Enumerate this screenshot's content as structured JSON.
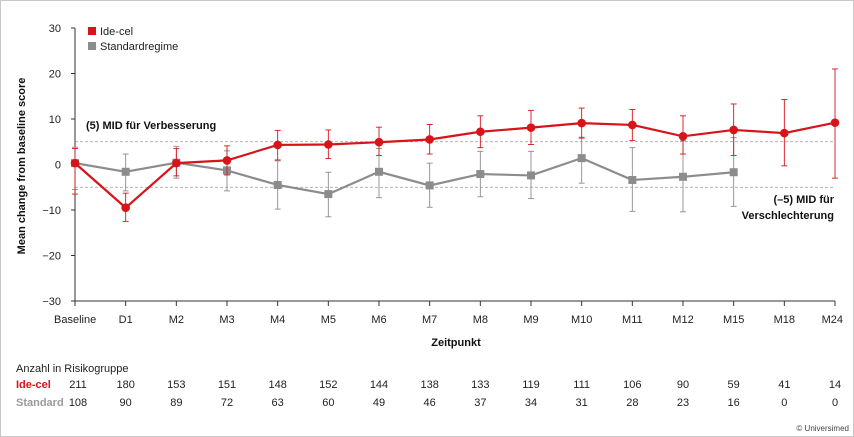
{
  "chart_data": {
    "type": "line",
    "ylabel": "Mean change from baseline score",
    "xlabel": "Zeitpunkt",
    "ylim": [
      -30,
      30
    ],
    "yticks": [
      30,
      20,
      10,
      0,
      -10,
      -20,
      -30
    ],
    "ytick_labels": [
      "30",
      "20",
      "10",
      "0",
      "−10",
      "−20",
      "−30"
    ],
    "categories": [
      "Baseline",
      "D1",
      "M2",
      "M3",
      "M4",
      "M5",
      "M6",
      "M7",
      "M8",
      "M9",
      "M10",
      "M11",
      "M12",
      "M15",
      "M18",
      "M24"
    ],
    "legend_position": "top-left",
    "series": [
      {
        "name": "Ide-cel",
        "color": "#d7141a",
        "values": [
          0.3,
          -9.5,
          0.3,
          0.9,
          4.3,
          4.4,
          4.9,
          5.5,
          7.2,
          8.1,
          9.1,
          8.7,
          6.2,
          7.6,
          6.9,
          9.2
        ],
        "err_low": [
          -6.5,
          -12.5,
          -2.5,
          -2.3,
          1.0,
          1.3,
          2.0,
          2.3,
          3.7,
          4.4,
          5.8,
          5.3,
          2.3,
          2.0,
          -0.3,
          -3.0
        ],
        "err_high": [
          3.5,
          -6.3,
          3.5,
          4.1,
          7.5,
          7.6,
          8.2,
          8.8,
          10.7,
          11.9,
          12.4,
          12.1,
          10.7,
          13.3,
          14.3,
          21.0
        ]
      },
      {
        "name": "Standardregime",
        "color": "#8c8c8c",
        "values": [
          0.3,
          -1.6,
          0.4,
          -1.3,
          -4.5,
          -6.5,
          -1.6,
          -4.6,
          -2.1,
          -2.4,
          1.4,
          -3.4,
          -2.7,
          -1.7,
          null,
          null
        ],
        "err_low": [
          -5.5,
          -5.8,
          -3.0,
          -5.8,
          -9.8,
          -11.5,
          -7.3,
          -9.4,
          -7.1,
          -7.5,
          -4.1,
          -10.3,
          -10.4,
          -9.2,
          null,
          null
        ],
        "err_high": [
          3.8,
          2.3,
          4.0,
          3.0,
          0.8,
          -1.7,
          3.5,
          0.3,
          2.9,
          2.9,
          6.0,
          3.7,
          5.2,
          5.9,
          null,
          null
        ]
      }
    ],
    "reference_lines": [
      {
        "y": 5,
        "label": "(5) MID für Verbesserung"
      },
      {
        "y": -5,
        "label": "(–5) MID für Verschlechterung"
      }
    ]
  },
  "annotations": {
    "mid_up": "(5) MID für Verbesserung",
    "mid_down_line1": "(–5) MID für",
    "mid_down_line2": "Verschlechterung"
  },
  "risk_table": {
    "title": "Anzahl in Risikogruppe",
    "rows": [
      {
        "label": "Ide-cel",
        "color": "#d7141a",
        "values": [
          "211",
          "180",
          "153",
          "151",
          "148",
          "152",
          "144",
          "138",
          "133",
          "119",
          "111",
          "106",
          "90",
          "59",
          "41",
          "14"
        ]
      },
      {
        "label": "Standard",
        "color": "#9a9a9a",
        "values": [
          "108",
          "90",
          "89",
          "72",
          "63",
          "60",
          "49",
          "46",
          "37",
          "34",
          "31",
          "28",
          "23",
          "16",
          "0",
          "0"
        ]
      }
    ]
  },
  "credit": "© Universimed"
}
